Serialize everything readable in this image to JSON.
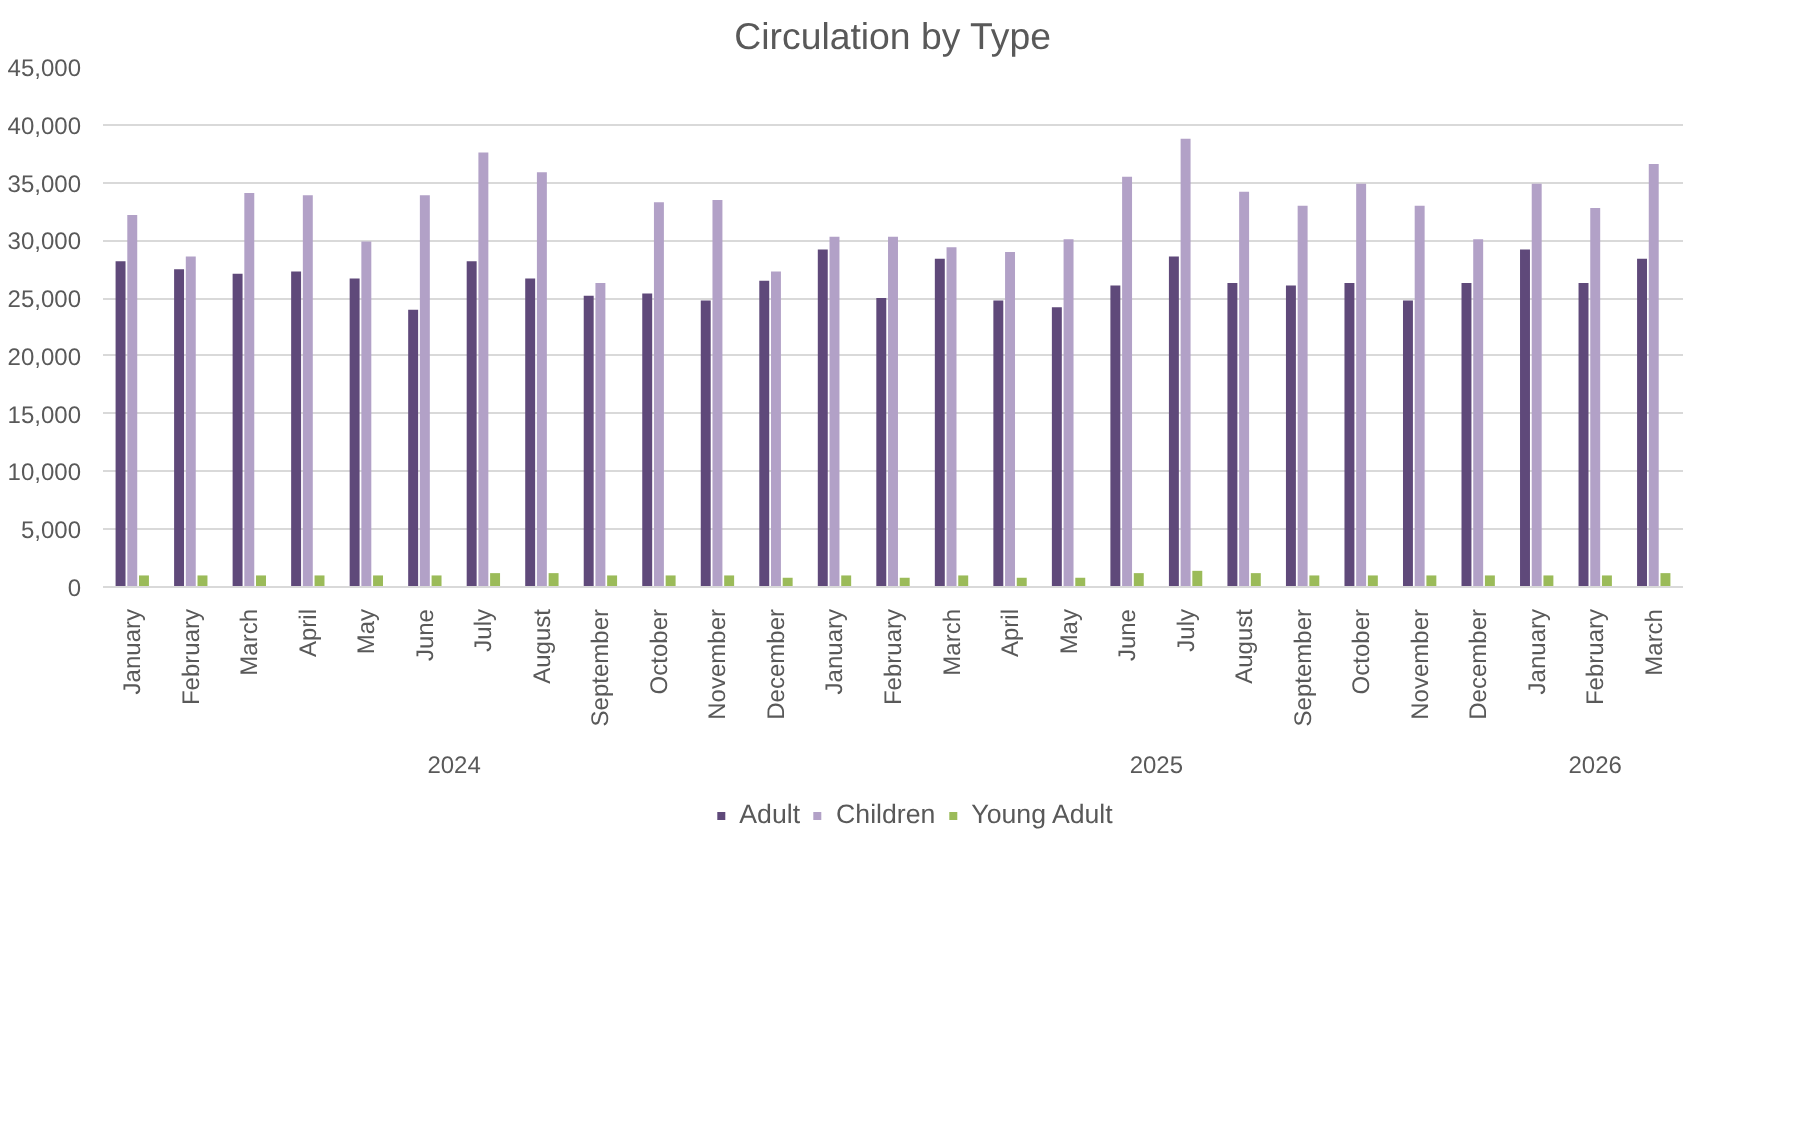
{
  "chart_data": {
    "type": "bar",
    "title": "Circulation by Type",
    "categories": [
      "January",
      "February",
      "March",
      "April",
      "May",
      "June",
      "July",
      "August",
      "September",
      "October",
      "November",
      "December",
      "January",
      "February",
      "March",
      "April",
      "May",
      "June",
      "July",
      "August",
      "September",
      "October",
      "November",
      "December",
      "January",
      "February",
      "March"
    ],
    "annotations": [
      "2024",
      "2025",
      "2026"
    ],
    "series": [
      {
        "name": "Adult",
        "color": "#5f497a",
        "values": [
          28200,
          27500,
          27100,
          27300,
          26700,
          24000,
          28200,
          26700,
          25200,
          25400,
          24800,
          26500,
          29200,
          25000,
          28400,
          24800,
          24200,
          26100,
          28600,
          26300,
          26100,
          26300,
          24800,
          26300,
          29200,
          26300,
          28400
        ]
      },
      {
        "name": "Children",
        "color": "#b2a1c7",
        "values": [
          32200,
          28600,
          34100,
          33900,
          29900,
          33900,
          37600,
          35900,
          26300,
          33300,
          33500,
          27300,
          30300,
          30300,
          29400,
          29000,
          30100,
          35500,
          38800,
          34200,
          33000,
          34900,
          33000,
          30100,
          34900,
          32800,
          36600
        ]
      },
      {
        "name": "Young Adult",
        "color": "#9bbb59",
        "values": [
          1000,
          1000,
          1000,
          1000,
          1000,
          1000,
          1200,
          1200,
          1000,
          1000,
          1000,
          800,
          1000,
          800,
          1000,
          800,
          800,
          1200,
          1400,
          1200,
          1000,
          1000,
          1000,
          1000,
          1000,
          1000,
          1200
        ]
      }
    ],
    "ylim": [
      0,
      45000
    ],
    "yticks": [
      {
        "value": 0,
        "label": "0"
      },
      {
        "value": 5000,
        "label": "5,000"
      },
      {
        "value": 10000,
        "label": "10,000"
      },
      {
        "value": 15000,
        "label": "15,000"
      },
      {
        "value": 20000,
        "label": "20,000"
      },
      {
        "value": 25000,
        "label": "25,000"
      },
      {
        "value": 30000,
        "label": "30,000"
      },
      {
        "value": 35000,
        "label": "35,000"
      },
      {
        "value": 40000,
        "label": "40,000"
      },
      {
        "value": 45000,
        "label": "45,000"
      }
    ],
    "grid": "y",
    "legend": "bottom"
  }
}
